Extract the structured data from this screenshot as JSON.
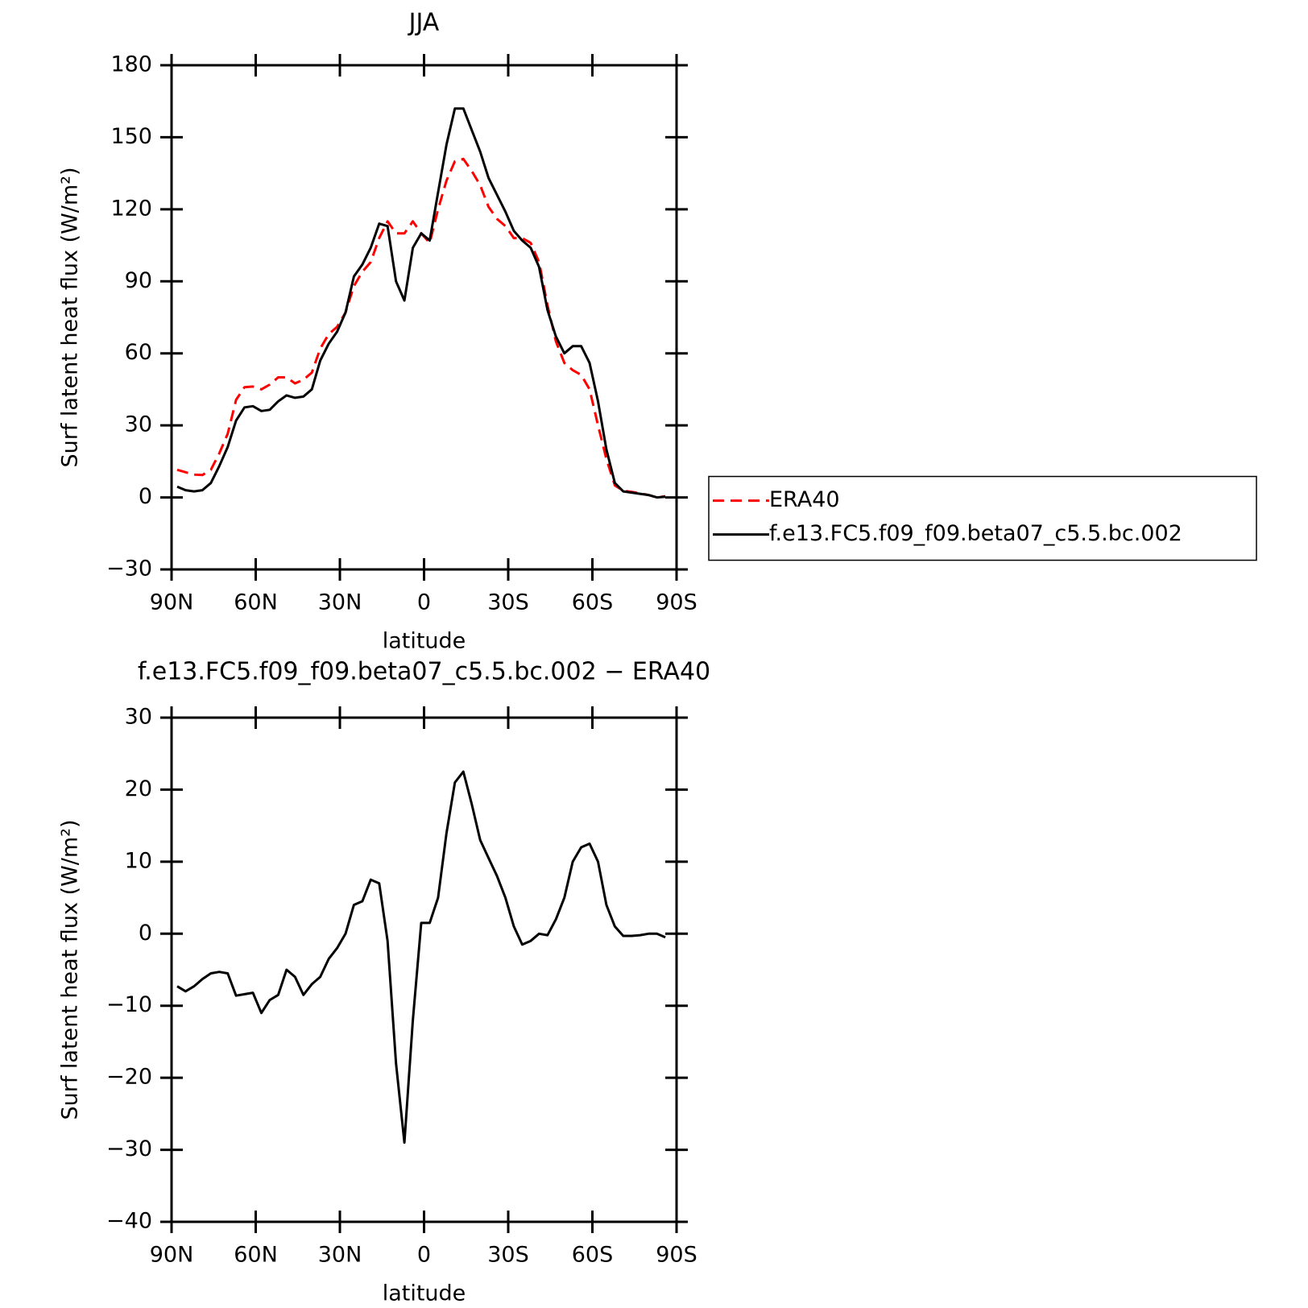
{
  "chart_data": [
    {
      "type": "line",
      "title": "JJA",
      "xlabel": "latitude",
      "ylabel": "Surf latent heat flux (W/m²)",
      "x": [
        88,
        85,
        82,
        79,
        76,
        73,
        70,
        67,
        64,
        61,
        58,
        55,
        52,
        49,
        46,
        43,
        40,
        37,
        34,
        31,
        28,
        25,
        22,
        19,
        16,
        13,
        10,
        7,
        4,
        1,
        -2,
        -5,
        -8,
        -11,
        -14,
        -17,
        -20,
        -23,
        -26,
        -29,
        -32,
        -35,
        -38,
        -41,
        -44,
        -47,
        -50,
        -53,
        -56,
        -59,
        -62,
        -65,
        -68,
        -71,
        -74,
        -77,
        -80,
        -83,
        -86
      ],
      "series": [
        {
          "name": "ERA40",
          "color": "#ff0000",
          "style": "dashed",
          "values": [
            11.5,
            10.5,
            9.5,
            9.3,
            11.5,
            18.3,
            26.5,
            40.6,
            45.9,
            46.2,
            45,
            47,
            50,
            50,
            47.5,
            49,
            52,
            62,
            68,
            71,
            77,
            88,
            94,
            98,
            108,
            115,
            110,
            110,
            115,
            110,
            106,
            120,
            132,
            140,
            141,
            136,
            130,
            121,
            116,
            113,
            108,
            108,
            106,
            98,
            80,
            65,
            56,
            53,
            51,
            45,
            30,
            16,
            5,
            2.8,
            2.3,
            1.7,
            1,
            0,
            0.5
          ]
        },
        {
          "name": "f.e13.FC5.f09_f09.beta07_c5.5.bc.002",
          "color": "#000000",
          "style": "solid",
          "values": [
            4.5,
            3,
            2.5,
            3,
            6,
            13,
            21,
            32,
            37.5,
            38,
            36,
            36.5,
            40,
            42.5,
            41.5,
            42,
            45,
            57,
            64,
            69,
            77,
            92,
            97,
            104,
            114,
            113,
            90,
            82,
            104,
            110,
            107,
            127,
            147,
            162,
            162,
            153,
            144,
            133,
            126,
            119,
            111,
            107,
            104,
            96,
            78,
            67,
            60,
            63,
            63,
            56,
            40,
            20,
            6,
            2.5,
            2,
            1.5,
            1,
            0,
            0.3
          ]
        }
      ],
      "xlim": [
        90,
        -90
      ],
      "xticks": [
        {
          "value": 90,
          "label": "90N"
        },
        {
          "value": 60,
          "label": "60N"
        },
        {
          "value": 30,
          "label": "30N"
        },
        0,
        {
          "value": -30,
          "label": "30S"
        },
        {
          "value": -60,
          "label": "60S"
        },
        {
          "value": -90,
          "label": "90S"
        }
      ],
      "ylim": [
        -30,
        180
      ],
      "yticks": [
        {
          "value": -30,
          "label": "−30"
        },
        0,
        30,
        60,
        90,
        120,
        150,
        180
      ],
      "legend": "right"
    },
    {
      "type": "line",
      "title": "f.e13.FC5.f09_f09.beta07_c5.5.bc.002 − ERA40",
      "xlabel": "latitude",
      "ylabel": "Surf latent heat flux (W/m²)",
      "x": [
        88,
        85,
        82,
        79,
        76,
        73,
        70,
        67,
        64,
        61,
        58,
        55,
        52,
        49,
        46,
        43,
        40,
        37,
        34,
        31,
        28,
        25,
        22,
        19,
        16,
        13,
        10,
        7,
        4,
        1,
        -2,
        -5,
        -8,
        -11,
        -14,
        -17,
        -20,
        -23,
        -26,
        -29,
        -32,
        -35,
        -38,
        -41,
        -44,
        -47,
        -50,
        -53,
        -56,
        -59,
        -62,
        -65,
        -68,
        -71,
        -74,
        -77,
        -80,
        -83,
        -86
      ],
      "values": [
        -7.3,
        -8,
        -7.3,
        -6.3,
        -5.5,
        -5.3,
        -5.5,
        -8.6,
        -8.4,
        -8.2,
        -11,
        -9.2,
        -8.5,
        -5,
        -6,
        -8.5,
        -7,
        -6,
        -3.5,
        -2,
        0,
        4,
        4.5,
        7.5,
        7,
        -1,
        -18,
        -29,
        -12,
        1.5,
        1.5,
        5,
        14,
        21,
        22.5,
        18,
        13,
        10.5,
        8,
        5,
        1,
        -1.5,
        -1,
        0,
        -0.2,
        2,
        5,
        10,
        12,
        12.5,
        10,
        4,
        1,
        -0.3,
        -0.3,
        -0.2,
        0,
        0,
        -0.5
      ],
      "color": "#000000",
      "xlim": [
        90,
        -90
      ],
      "xticks": [
        {
          "value": 90,
          "label": "90N"
        },
        {
          "value": 60,
          "label": "60N"
        },
        {
          "value": 30,
          "label": "30N"
        },
        0,
        {
          "value": -30,
          "label": "30S"
        },
        {
          "value": -60,
          "label": "60S"
        },
        {
          "value": -90,
          "label": "90S"
        }
      ],
      "ylim": [
        -40,
        30
      ],
      "yticks": [
        {
          "value": -40,
          "label": "−40"
        },
        {
          "value": -30,
          "label": "−30"
        },
        {
          "value": -20,
          "label": "−20"
        },
        {
          "value": -10,
          "label": "−10"
        },
        0,
        10,
        20,
        30
      ]
    }
  ]
}
